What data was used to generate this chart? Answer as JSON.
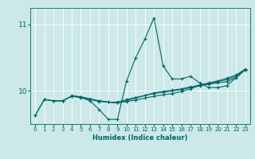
{
  "xlabel": "Humidex (Indice chaleur)",
  "bg_color": "#cce8e8",
  "line_color": "#006666",
  "grid_color": "#ffffff",
  "xlim": [
    -0.5,
    23.5
  ],
  "ylim": [
    9.5,
    11.25
  ],
  "yticks": [
    10,
    11
  ],
  "xticks": [
    0,
    1,
    2,
    3,
    4,
    5,
    6,
    7,
    8,
    9,
    10,
    11,
    12,
    13,
    14,
    15,
    16,
    17,
    18,
    19,
    20,
    21,
    22,
    23
  ],
  "series": [
    {
      "x": [
        0,
        1,
        2,
        3,
        4,
        5,
        6,
        7,
        8,
        9,
        10,
        11,
        12,
        13,
        14,
        15,
        16,
        17,
        18,
        19,
        20,
        21,
        22,
        23
      ],
      "y": [
        9.63,
        9.87,
        9.85,
        9.85,
        9.92,
        9.9,
        9.85,
        9.72,
        9.57,
        9.57,
        10.15,
        10.5,
        10.78,
        11.1,
        10.38,
        10.18,
        10.18,
        10.22,
        10.12,
        10.05,
        10.05,
        10.08,
        10.2,
        10.32
      ]
    },
    {
      "x": [
        0,
        1,
        2,
        3,
        4,
        5,
        6,
        7,
        8,
        9,
        10,
        11,
        12,
        13,
        14,
        15,
        16,
        17,
        18,
        19,
        20,
        21,
        22,
        23
      ],
      "y": [
        9.63,
        9.87,
        9.85,
        9.85,
        9.92,
        9.91,
        9.87,
        9.85,
        9.83,
        9.83,
        9.87,
        9.9,
        9.93,
        9.97,
        9.99,
        10.01,
        10.03,
        10.06,
        10.08,
        10.1,
        10.12,
        10.14,
        10.2,
        10.32
      ]
    },
    {
      "x": [
        1,
        2,
        3,
        4,
        5,
        6,
        7,
        8,
        9,
        10,
        11,
        12,
        13,
        14,
        15,
        16,
        17,
        18,
        19,
        20,
        21,
        22,
        23
      ],
      "y": [
        9.87,
        9.85,
        9.85,
        9.92,
        9.9,
        9.87,
        9.84,
        9.83,
        9.82,
        9.84,
        9.86,
        9.89,
        9.92,
        9.94,
        9.96,
        9.99,
        10.03,
        10.08,
        10.11,
        10.14,
        10.17,
        10.22,
        10.32
      ]
    },
    {
      "x": [
        4,
        5,
        6,
        7,
        8,
        9,
        10,
        11,
        12,
        13,
        14,
        15,
        16,
        17,
        18,
        19,
        20,
        21,
        22,
        23
      ],
      "y": [
        9.93,
        9.91,
        9.88,
        9.85,
        9.83,
        9.82,
        9.85,
        9.89,
        9.93,
        9.96,
        9.98,
        10.0,
        10.02,
        10.05,
        10.09,
        10.12,
        10.15,
        10.19,
        10.24,
        10.33
      ]
    }
  ]
}
